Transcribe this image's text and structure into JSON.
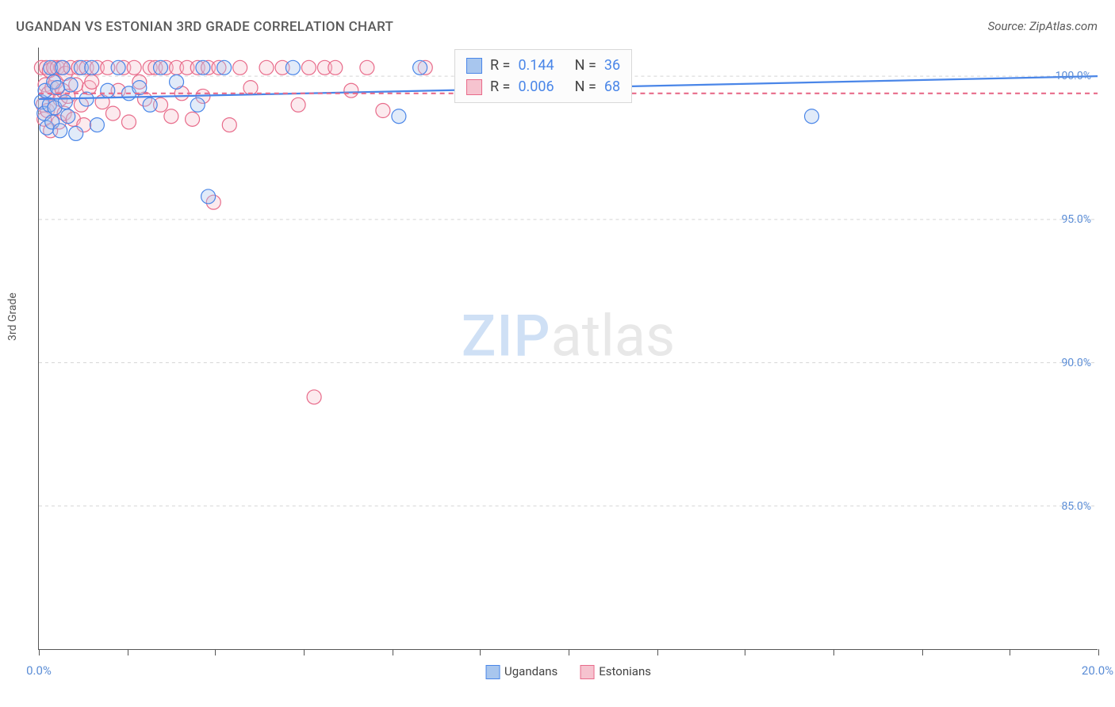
{
  "title": "UGANDAN VS ESTONIAN 3RD GRADE CORRELATION CHART",
  "source_label": "Source: ZipAtlas.com",
  "y_axis_label": "3rd Grade",
  "watermark": {
    "part1": "ZIP",
    "part2": "atlas"
  },
  "chart": {
    "type": "scatter",
    "background_color": "#ffffff",
    "grid_color": "#d5d5d5",
    "axis_color": "#555555",
    "tick_label_color": "#5b8dd6",
    "xlim": [
      0,
      20
    ],
    "ylim": [
      80,
      101
    ],
    "x_ticks": [
      0,
      1.67,
      3.33,
      5.0,
      6.67,
      8.33,
      10.0,
      11.67,
      13.33,
      15.0,
      16.67,
      18.33,
      20.0
    ],
    "x_tick_labels": {
      "0": "0.0%",
      "20": "20.0%"
    },
    "y_gridlines": [
      85,
      90,
      95,
      100
    ],
    "y_tick_labels": {
      "85": "85.0%",
      "90": "90.0%",
      "95": "95.0%",
      "100": "100.0%"
    },
    "marker_radius": 9,
    "marker_fill_opacity": 0.35,
    "marker_stroke_width": 1.2,
    "trend_line_width": 2.2,
    "series": [
      {
        "name": "Ugandans",
        "color_fill": "#a8c6ee",
        "color_stroke": "#4a86e8",
        "r_value": "0.144",
        "n_value": "36",
        "trend": {
          "x1": 0,
          "y1": 99.2,
          "x2": 20,
          "y2": 100.0,
          "dash": null
        },
        "points": [
          [
            0.05,
            99.1
          ],
          [
            0.1,
            98.7
          ],
          [
            0.12,
            99.5
          ],
          [
            0.15,
            98.2
          ],
          [
            0.2,
            99.0
          ],
          [
            0.22,
            100.3
          ],
          [
            0.25,
            98.4
          ],
          [
            0.28,
            99.8
          ],
          [
            0.3,
            98.9
          ],
          [
            0.35,
            99.6
          ],
          [
            0.4,
            98.1
          ],
          [
            0.45,
            100.3
          ],
          [
            0.5,
            99.1
          ],
          [
            0.55,
            98.6
          ],
          [
            0.6,
            99.7
          ],
          [
            0.7,
            98.0
          ],
          [
            0.8,
            100.3
          ],
          [
            0.9,
            99.2
          ],
          [
            1.0,
            100.3
          ],
          [
            1.1,
            98.3
          ],
          [
            1.3,
            99.5
          ],
          [
            1.5,
            100.3
          ],
          [
            1.7,
            99.4
          ],
          [
            1.9,
            99.6
          ],
          [
            2.1,
            99.0
          ],
          [
            2.3,
            100.3
          ],
          [
            2.6,
            99.8
          ],
          [
            3.0,
            99.0
          ],
          [
            3.1,
            100.3
          ],
          [
            3.2,
            95.8
          ],
          [
            3.5,
            100.3
          ],
          [
            6.8,
            98.6
          ],
          [
            7.2,
            100.3
          ],
          [
            9.2,
            99.6
          ],
          [
            14.6,
            98.6
          ],
          [
            4.8,
            100.3
          ]
        ]
      },
      {
        "name": "Estonians",
        "color_fill": "#f6c3cf",
        "color_stroke": "#e86b8a",
        "r_value": "0.006",
        "n_value": "68",
        "trend": {
          "x1": 0,
          "y1": 99.4,
          "x2": 20,
          "y2": 99.4,
          "dash": "6,5"
        },
        "points": [
          [
            0.05,
            100.3
          ],
          [
            0.08,
            99.0
          ],
          [
            0.1,
            98.5
          ],
          [
            0.12,
            99.7
          ],
          [
            0.14,
            100.3
          ],
          [
            0.16,
            98.8
          ],
          [
            0.18,
            99.4
          ],
          [
            0.2,
            100.2
          ],
          [
            0.22,
            98.1
          ],
          [
            0.25,
            99.6
          ],
          [
            0.28,
            100.3
          ],
          [
            0.3,
            98.9
          ],
          [
            0.32,
            99.8
          ],
          [
            0.35,
            100.3
          ],
          [
            0.38,
            98.4
          ],
          [
            0.4,
            99.2
          ],
          [
            0.42,
            100.3
          ],
          [
            0.45,
            99.5
          ],
          [
            0.48,
            98.7
          ],
          [
            0.5,
            100.1
          ],
          [
            0.55,
            99.3
          ],
          [
            0.6,
            100.3
          ],
          [
            0.65,
            98.5
          ],
          [
            0.7,
            99.7
          ],
          [
            0.75,
            100.3
          ],
          [
            0.8,
            99.0
          ],
          [
            0.85,
            98.3
          ],
          [
            0.9,
            100.3
          ],
          [
            0.95,
            99.6
          ],
          [
            1.0,
            99.8
          ],
          [
            1.1,
            100.3
          ],
          [
            1.2,
            99.1
          ],
          [
            1.3,
            100.3
          ],
          [
            1.4,
            98.7
          ],
          [
            1.5,
            99.5
          ],
          [
            1.6,
            100.3
          ],
          [
            1.7,
            98.4
          ],
          [
            1.8,
            100.3
          ],
          [
            1.9,
            99.8
          ],
          [
            2.0,
            99.2
          ],
          [
            2.1,
            100.3
          ],
          [
            2.2,
            100.3
          ],
          [
            2.3,
            99.0
          ],
          [
            2.4,
            100.3
          ],
          [
            2.5,
            98.6
          ],
          [
            2.6,
            100.3
          ],
          [
            2.7,
            99.4
          ],
          [
            2.8,
            100.3
          ],
          [
            2.9,
            98.5
          ],
          [
            3.0,
            100.3
          ],
          [
            3.1,
            99.3
          ],
          [
            3.2,
            100.3
          ],
          [
            3.3,
            95.6
          ],
          [
            3.4,
            100.3
          ],
          [
            3.6,
            98.3
          ],
          [
            3.8,
            100.3
          ],
          [
            4.0,
            99.6
          ],
          [
            4.3,
            100.3
          ],
          [
            4.6,
            100.3
          ],
          [
            4.9,
            99.0
          ],
          [
            5.1,
            100.3
          ],
          [
            5.2,
            88.8
          ],
          [
            5.4,
            100.3
          ],
          [
            5.6,
            100.3
          ],
          [
            5.9,
            99.5
          ],
          [
            6.2,
            100.3
          ],
          [
            6.5,
            98.8
          ],
          [
            7.3,
            100.3
          ]
        ]
      }
    ],
    "stat_box": {
      "r_label": "R  =",
      "n_label": "N  ="
    },
    "legend_labels": {
      "ugandans": "Ugandans",
      "estonians": "Estonians"
    }
  }
}
